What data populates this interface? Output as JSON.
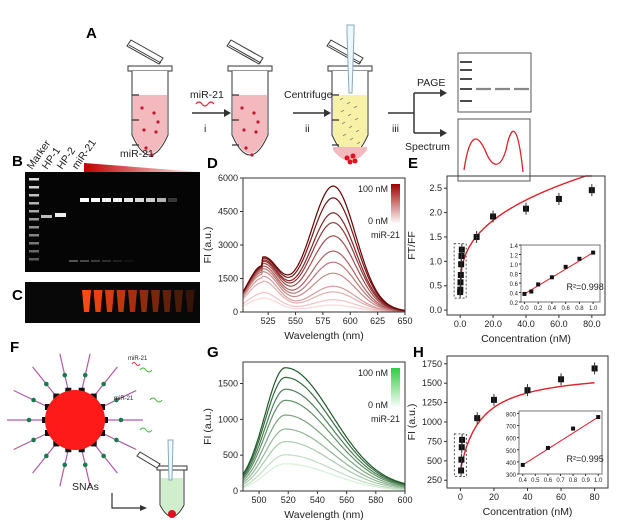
{
  "panels": {
    "A": "A",
    "B": "B",
    "C": "C",
    "D": "D",
    "E": "E",
    "F": "F",
    "G": "G",
    "H": "H"
  },
  "schematic_a": {
    "step_i_reagent": "miR-21",
    "step_i": "i",
    "step_ii_label": "Centrifuge",
    "step_ii": "ii",
    "step_iii": "iii",
    "branch_page": "PAGE",
    "branch_spectrum": "Spectrum"
  },
  "gel_b": {
    "lanes": [
      "Marker",
      "HP-1",
      "HP-2",
      "miR-21"
    ],
    "gradient_label": "miR-21"
  },
  "schematic_f": {
    "label_snas": "SNAs",
    "mir_label_1": "miR-21",
    "mir_label_2": "miR-21"
  },
  "colors": {
    "red": "#c00000",
    "dark_red": "#6b0000",
    "green": "#2e8b3e",
    "accent_curve": "#e0202a"
  },
  "chart_data": [
    {
      "id": "D",
      "type": "line",
      "xlabel": "Wavelength (nm)",
      "ylabel": "FI (a.u.)",
      "xlim": [
        502,
        650
      ],
      "ylim": [
        0,
        6000
      ],
      "xticks": [
        525,
        550,
        575,
        600,
        625,
        650
      ],
      "yticks": [
        0,
        1500,
        3000,
        4500,
        6000
      ],
      "legend": {
        "max": "100 nM",
        "min": "0 nM",
        "name": "miR-21",
        "placement": "top-right"
      },
      "peaks_nm": [
        520,
        585
      ],
      "series_peak_values": [
        [
          600,
          280
        ],
        [
          840,
          500
        ],
        [
          1320,
          820
        ],
        [
          1520,
          1050
        ],
        [
          1680,
          1580
        ],
        [
          1780,
          2030
        ],
        [
          1860,
          2480
        ],
        [
          1930,
          3100
        ],
        [
          1980,
          3640
        ],
        [
          2010,
          4040
        ],
        [
          2040,
          4650
        ],
        [
          2060,
          5130
        ]
      ]
    },
    {
      "id": "E",
      "type": "scatter",
      "xlabel": "Concentration (nM)",
      "ylabel": "FT/FF",
      "xlim": [
        -8,
        88
      ],
      "ylim": [
        -0.1,
        2.75
      ],
      "xticks": [
        0,
        20,
        40,
        60,
        80
      ],
      "yticks": [
        0.0,
        0.5,
        1.0,
        1.5,
        2.0,
        2.5
      ],
      "x": [
        0,
        0.1,
        0.2,
        0.4,
        0.6,
        0.8,
        1,
        10,
        20,
        40,
        60,
        80
      ],
      "y": [
        0.37,
        0.42,
        0.57,
        0.72,
        0.94,
        1.11,
        1.24,
        1.5,
        1.92,
        2.08,
        2.28,
        2.46
      ],
      "inset": {
        "xlim": [
          -0.05,
          1.1
        ],
        "ylim": [
          0.2,
          1.4
        ],
        "xticks": [
          0.0,
          0.2,
          0.4,
          0.6,
          0.8,
          1.0
        ],
        "yticks": [
          0.2,
          0.4,
          0.6,
          0.8,
          1.0,
          1.2,
          1.4
        ],
        "r2": "R²=0.998"
      }
    },
    {
      "id": "G",
      "type": "line",
      "xlabel": "Wavelength (nm)",
      "ylabel": "FI (a.u.)",
      "xlim": [
        489,
        600
      ],
      "ylim": [
        0,
        1800
      ],
      "xticks": [
        500,
        520,
        540,
        560,
        580,
        600
      ],
      "yticks": [
        0,
        500,
        1000,
        1500
      ],
      "legend": {
        "max": "100 nM",
        "min": "0 nM",
        "name": "miR-21",
        "placement": "top-right"
      },
      "peak_nm": 518,
      "series_peak_values": [
        380,
        500,
        680,
        850,
        1040,
        1240,
        1390,
        1550,
        1680
      ]
    },
    {
      "id": "H",
      "type": "scatter",
      "xlabel": "Concentration (nM)",
      "ylabel": "FI (a.u.)",
      "xlim": [
        -8,
        88
      ],
      "ylim": [
        150,
        1850
      ],
      "xticks": [
        0,
        20,
        40,
        60,
        80
      ],
      "yticks": [
        250,
        500,
        750,
        1000,
        1250,
        1500,
        1750
      ],
      "x": [
        0.4,
        0.6,
        0.8,
        1,
        10,
        20,
        40,
        60,
        80
      ],
      "y": [
        375,
        515,
        675,
        770,
        1050,
        1285,
        1410,
        1550,
        1690
      ],
      "inset": {
        "xlim": [
          0.37,
          1.03
        ],
        "ylim": [
          300,
          820
        ],
        "xticks": [
          0.4,
          0.5,
          0.6,
          0.7,
          0.8,
          0.9,
          1.0
        ],
        "yticks": [
          300,
          400,
          500,
          600,
          700,
          800
        ],
        "r2": "R²=0.995"
      }
    }
  ]
}
